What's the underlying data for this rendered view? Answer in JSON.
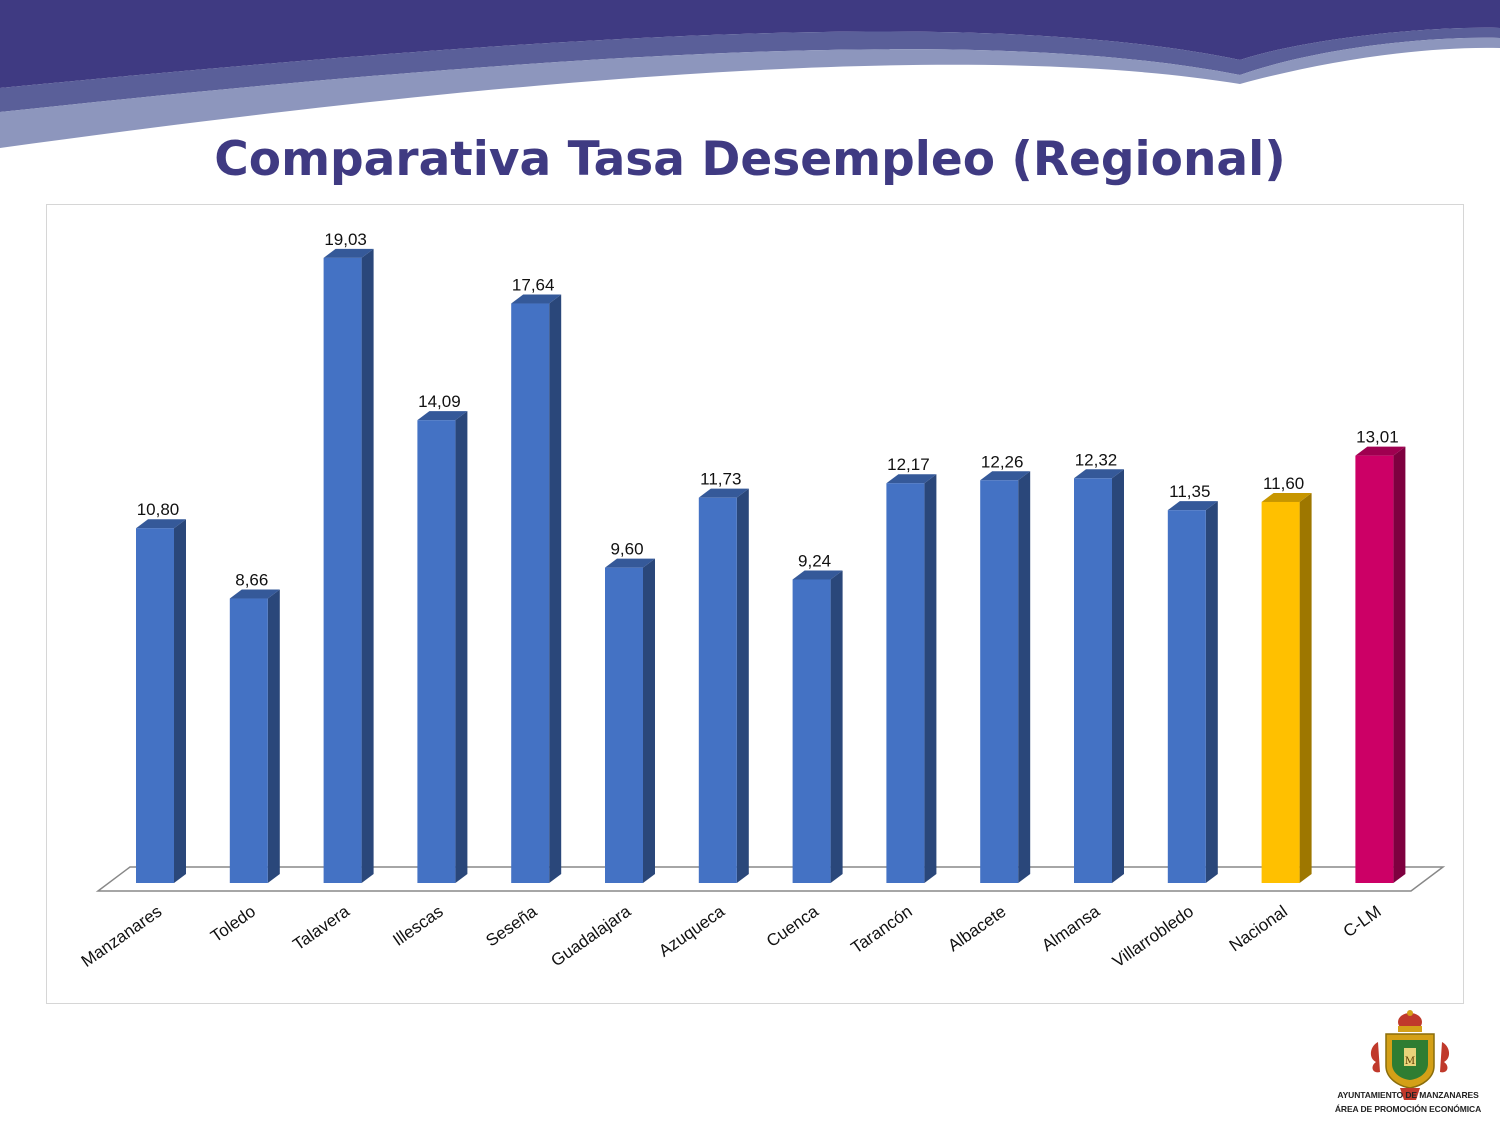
{
  "title": "Comparativa Tasa Desempleo (Regional)",
  "footer": {
    "org_line1": "AYUNTAMIENTO DE MANZANARES",
    "org_line2": "ÁREA DE PROMOCIÓN ECONÓMICA"
  },
  "colors": {
    "title": "#3f3a82",
    "bar_default": "#4472c4",
    "bar_nacional": "#ffc000",
    "bar_clm": "#cc0066"
  },
  "chart_data": {
    "type": "bar",
    "title": "",
    "xlabel": "",
    "ylabel": "",
    "ylim": [
      0,
      20
    ],
    "grid": false,
    "categories": [
      "Manzanares",
      "Toledo",
      "Talavera",
      "Illescas",
      "Seseña",
      "Guadalajara",
      "Azuqueca",
      "Cuenca",
      "Tarancón",
      "Albacete",
      "Almansa",
      "Villarrobledo",
      "Nacional",
      "C-LM"
    ],
    "values": [
      10.8,
      8.66,
      19.03,
      14.09,
      17.64,
      9.6,
      11.73,
      9.24,
      12.17,
      12.26,
      12.32,
      11.35,
      11.6,
      13.01
    ],
    "value_labels": [
      "10,80",
      "8,66",
      "19,03",
      "14,09",
      "17,64",
      "9,60",
      "11,73",
      "9,24",
      "12,17",
      "12,26",
      "12,32",
      "11,35",
      "11,60",
      "13,01"
    ],
    "bar_colors": [
      "#4472c4",
      "#4472c4",
      "#4472c4",
      "#4472c4",
      "#4472c4",
      "#4472c4",
      "#4472c4",
      "#4472c4",
      "#4472c4",
      "#4472c4",
      "#4472c4",
      "#4472c4",
      "#ffc000",
      "#cc0066"
    ]
  }
}
